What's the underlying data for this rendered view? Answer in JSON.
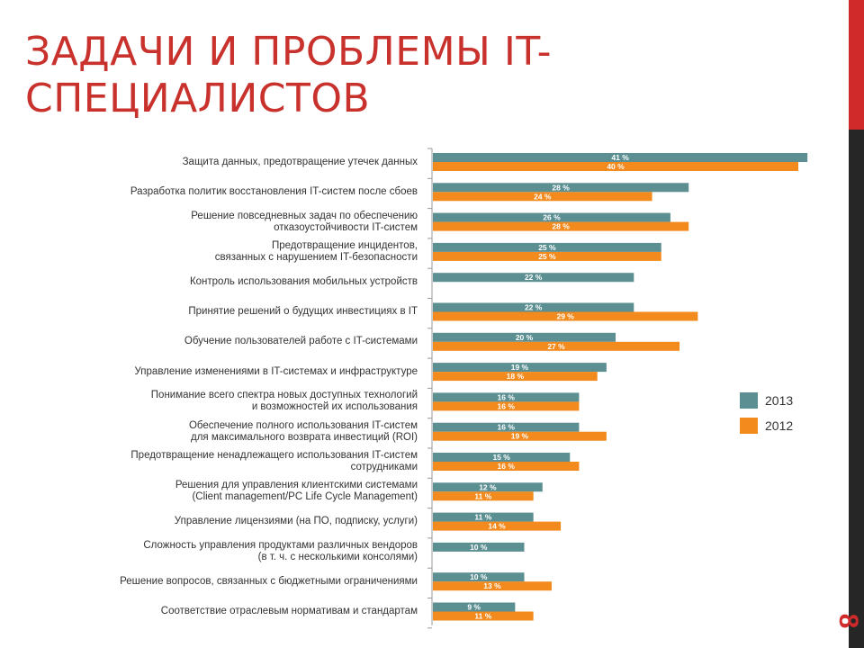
{
  "title": "ЗАДАЧИ И ПРОБЛЕМЫ IT-СПЕЦИАЛИСТОВ",
  "page_number": "8",
  "colors": {
    "s2013": "#5b8f92",
    "s2012": "#f28a1e",
    "accent": "#c8312c"
  },
  "chart_data": {
    "type": "bar",
    "orientation": "horizontal",
    "title": "",
    "xlabel": "",
    "ylabel": "",
    "xlim": [
      0,
      41
    ],
    "legend_position": "right",
    "categories": [
      "Защита данных, предотвращение утечек данных",
      "Разработка политик восстановления IT-систем после сбоев",
      "Решение повседневных задач по обеспечению отказоустойчивости IT-систем",
      "Предотвращение инцидентов, связанных с нарушением IT-безопасности",
      "Контроль использования мобильных устройств",
      "Принятие решений о будущих инвестициях в IT",
      "Обучение пользователей работе с IT-системами",
      "Управление изменениями в IT-системах и инфраструктуре",
      "Понимание всего спектра новых доступных технологий и возможностей их использования",
      "Обеспечение полного использования IT-систем для максимального возврата инвестиций (ROI)",
      "Предотвращение ненадлежащего использования IT-систем сотрудниками",
      "Решения для управления клиентскими системами (Client management/PC Life Cycle Management)",
      "Управление лицензиями (на ПО, подписку, услуги)",
      "Сложность управления продуктами различных вендоров (в т. ч. с несколькими консолями)",
      "Решение вопросов, связанных с бюджетными ограничениями",
      "Соответствие отраслевым нормативам и стандартам"
    ],
    "category_lines": [
      [
        "Защита данных, предотвращение утечек данных"
      ],
      [
        "Разработка политик восстановления IT-систем после сбоев"
      ],
      [
        "Решение повседневных задач по обеспечению",
        "отказоустойчивости IT-систем"
      ],
      [
        "Предотвращение инцидентов,",
        "связанных с нарушением IT-безопасности"
      ],
      [
        "Контроль использования мобильных устройств"
      ],
      [
        "Принятие решений о будущих инвестициях в IT"
      ],
      [
        "Обучение пользователей работе с IT-системами"
      ],
      [
        "Управление изменениями в IT-системах и инфраструктуре"
      ],
      [
        "Понимание всего спектра новых доступных технологий",
        "и возможностей их использования"
      ],
      [
        "Обеспечение полного использования IT-систем",
        "для максимального возврата инвестиций (ROI)"
      ],
      [
        "Предотвращение ненадлежащего использования IT-систем",
        "сотрудниками"
      ],
      [
        "Решения для управления клиентскими системами",
        "(Client management/PC Life Cycle Management)"
      ],
      [
        "Управление лицензиями (на ПО, подписку, услуги)"
      ],
      [
        "Сложность управления продуктами различных вендоров",
        "(в т. ч. с несколькими консолями)"
      ],
      [
        "Решение вопросов, связанных с бюджетными ограничениями"
      ],
      [
        "Соответствие отраслевым нормативам и стандартам"
      ]
    ],
    "series": [
      {
        "name": "2013",
        "color": "#5b8f92",
        "values": [
          41,
          28,
          26,
          25,
          22,
          22,
          20,
          19,
          16,
          16,
          15,
          12,
          11,
          10,
          10,
          9
        ],
        "labels": [
          "41 %",
          "28 %",
          "26 %",
          "25 %",
          "22 %",
          "22 %",
          "20 %",
          "19 %",
          "16 %",
          "16 %",
          "15 %",
          "12 %",
          "11 %",
          "10 %",
          "10 %",
          "9 %"
        ]
      },
      {
        "name": "2012",
        "color": "#f28a1e",
        "values": [
          40,
          24,
          28,
          25,
          null,
          29,
          27,
          18,
          16,
          19,
          16,
          11,
          14,
          null,
          13,
          11
        ],
        "labels": [
          "40 %",
          "24 %",
          "28 %",
          "25 %",
          null,
          "29 %",
          "27 %",
          "18 %",
          "16 %",
          "19 %",
          "16 %",
          "11 %",
          "14 %",
          null,
          "13 %",
          "11 %"
        ]
      }
    ]
  }
}
